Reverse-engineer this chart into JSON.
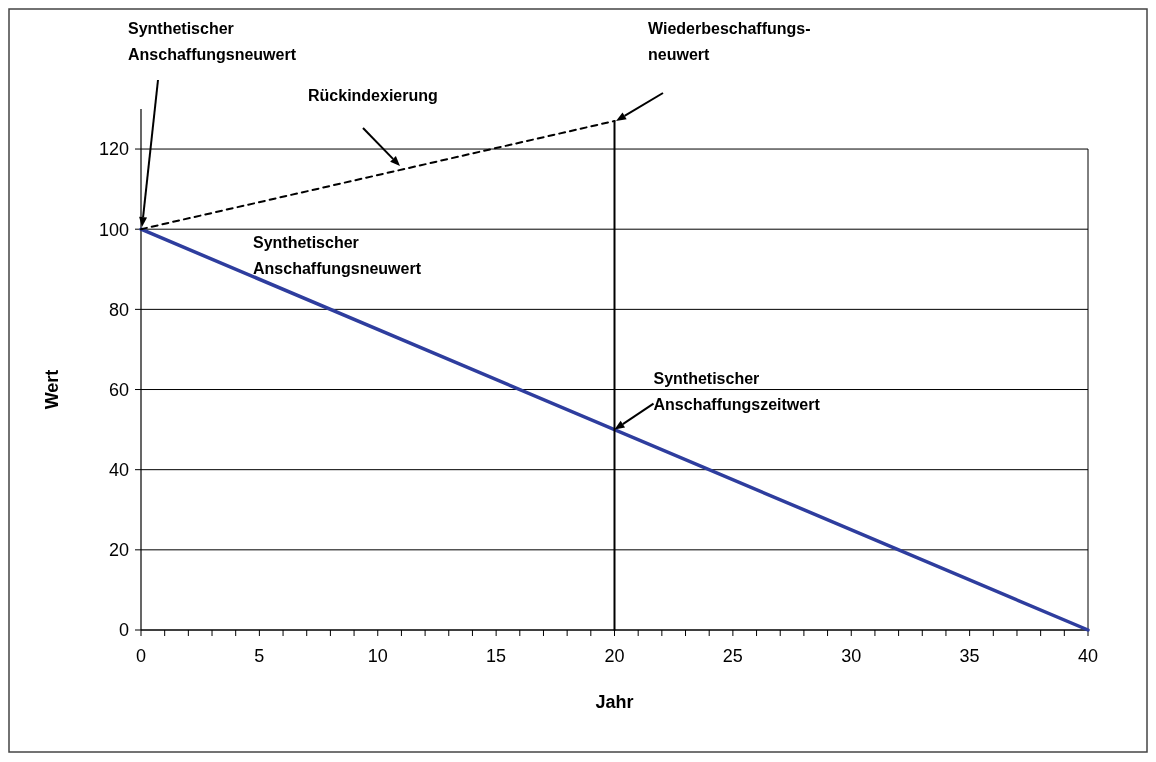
{
  "chart_data": {
    "type": "line",
    "xlabel": "Jahr",
    "ylabel": "Wert",
    "xlim": [
      0,
      40
    ],
    "xticks": [
      0,
      {
        "value": 1,
        "label": null
      },
      {
        "value": 2,
        "label": null
      },
      {
        "value": 3,
        "label": null
      },
      {
        "value": 4,
        "label": null
      },
      5,
      {
        "value": 6,
        "label": null
      },
      {
        "value": 7,
        "label": null
      },
      {
        "value": 8,
        "label": null
      },
      {
        "value": 9,
        "label": null
      },
      10,
      {
        "value": 11,
        "label": null
      },
      {
        "value": 12,
        "label": null
      },
      {
        "value": 13,
        "label": null
      },
      {
        "value": 14,
        "label": null
      },
      15,
      {
        "value": 16,
        "label": null
      },
      {
        "value": 17,
        "label": null
      },
      {
        "value": 18,
        "label": null
      },
      {
        "value": 19,
        "label": null
      },
      20,
      {
        "value": 21,
        "label": null
      },
      {
        "value": 22,
        "label": null
      },
      {
        "value": 23,
        "label": null
      },
      {
        "value": 24,
        "label": null
      },
      25,
      {
        "value": 26,
        "label": null
      },
      {
        "value": 27,
        "label": null
      },
      {
        "value": 28,
        "label": null
      },
      {
        "value": 29,
        "label": null
      },
      30,
      {
        "value": 31,
        "label": null
      },
      {
        "value": 32,
        "label": null
      },
      {
        "value": 33,
        "label": null
      },
      {
        "value": 34,
        "label": null
      },
      35,
      {
        "value": 36,
        "label": null
      },
      {
        "value": 37,
        "label": null
      },
      {
        "value": 38,
        "label": null
      },
      {
        "value": 39,
        "label": null
      },
      40
    ],
    "ylim": [
      0,
      130
    ],
    "yticks": [
      0,
      20,
      40,
      60,
      80,
      100,
      120
    ],
    "grid": "y",
    "series": [
      {
        "color": "#2e3d9e",
        "x": [
          0,
          40
        ],
        "values": [
          100,
          0
        ]
      },
      {
        "color": "#000000",
        "x": [
          0,
          20
        ],
        "values": [
          100,
          127
        ],
        "line_style": "dashed"
      },
      {
        "color": "#000000",
        "x": [
          20,
          20
        ],
        "values": [
          0,
          127
        ]
      }
    ],
    "annotations": [
      "Synthetischer\nAnschaffungsneuwert",
      "Wiederbeschaffungs-\nneuwert",
      "Rückindexierung",
      "Synthetischer\nAnschaffungsneuwert",
      {
        "text": "Synthetischer\nAnschaffungszeitwert",
        "x": 20,
        "y": 50
      }
    ]
  }
}
